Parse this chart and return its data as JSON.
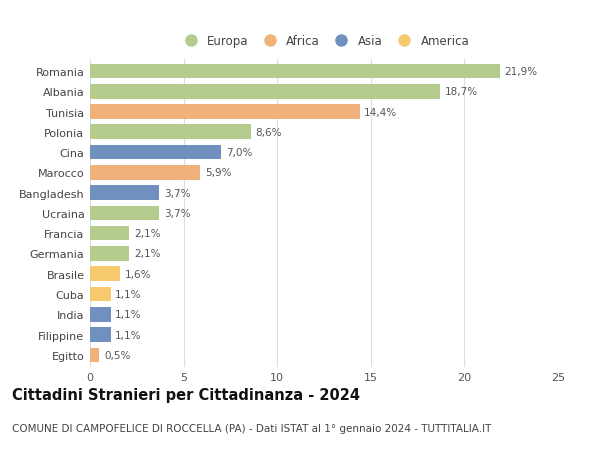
{
  "categories": [
    "Romania",
    "Albania",
    "Tunisia",
    "Polonia",
    "Cina",
    "Marocco",
    "Bangladesh",
    "Ucraina",
    "Francia",
    "Germania",
    "Brasile",
    "Cuba",
    "India",
    "Filippine",
    "Egitto"
  ],
  "values": [
    21.9,
    18.7,
    14.4,
    8.6,
    7.0,
    5.9,
    3.7,
    3.7,
    2.1,
    2.1,
    1.6,
    1.1,
    1.1,
    1.1,
    0.5
  ],
  "continents": [
    "Europa",
    "Europa",
    "Africa",
    "Europa",
    "Asia",
    "Africa",
    "Asia",
    "Europa",
    "Europa",
    "Europa",
    "America",
    "America",
    "Asia",
    "Asia",
    "Africa"
  ],
  "labels": [
    "21,9%",
    "18,7%",
    "14,4%",
    "8,6%",
    "7,0%",
    "5,9%",
    "3,7%",
    "3,7%",
    "2,1%",
    "2,1%",
    "1,6%",
    "1,1%",
    "1,1%",
    "1,1%",
    "0,5%"
  ],
  "continent_colors": {
    "Europa": "#b5cc8e",
    "Africa": "#f0b27a",
    "Asia": "#7090c0",
    "America": "#f7c96e"
  },
  "legend_entries": [
    "Europa",
    "Africa",
    "Asia",
    "America"
  ],
  "title": "Cittadini Stranieri per Cittadinanza - 2024",
  "subtitle": "COMUNE DI CAMPOFELICE DI ROCCELLA (PA) - Dati ISTAT al 1° gennaio 2024 - TUTTITALIA.IT",
  "xlim": [
    0,
    25
  ],
  "xticks": [
    0,
    5,
    10,
    15,
    20,
    25
  ],
  "background_color": "#ffffff",
  "grid_color": "#dddddd",
  "bar_height": 0.72,
  "label_fontsize": 7.5,
  "title_fontsize": 10.5,
  "subtitle_fontsize": 7.5,
  "ytick_fontsize": 8,
  "xtick_fontsize": 8
}
